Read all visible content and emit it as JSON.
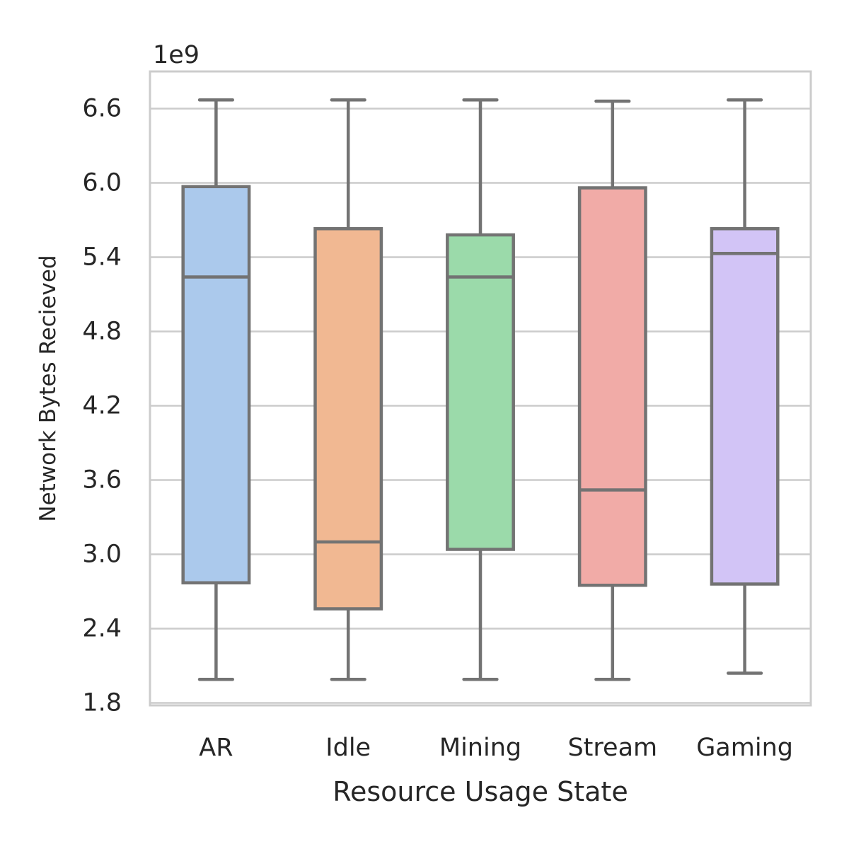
{
  "chart_data": {
    "type": "box",
    "xlabel": "Resource Usage State",
    "ylabel": "Network Bytes Recieved",
    "offset_label": "1e9",
    "ylim": [
      1.78,
      6.9
    ],
    "yticks": [
      1.8,
      2.4,
      3.0,
      3.6,
      4.2,
      4.8,
      5.4,
      6.0,
      6.6
    ],
    "ytick_labels": [
      "1.8",
      "2.4",
      "3.0",
      "3.6",
      "4.2",
      "4.8",
      "5.4",
      "6.0",
      "6.6"
    ],
    "grid": true,
    "categories": [
      "AR",
      "Idle",
      "Mining",
      "Stream",
      "Gaming"
    ],
    "boxes": [
      {
        "category": "AR",
        "whisker_low": 1.99,
        "q1": 2.77,
        "median": 5.24,
        "q3": 5.97,
        "whisker_high": 6.67,
        "color": "#abc9ec"
      },
      {
        "category": "Idle",
        "whisker_low": 1.99,
        "q1": 2.56,
        "median": 3.1,
        "q3": 5.63,
        "whisker_high": 6.67,
        "color": "#f1b892"
      },
      {
        "category": "Mining",
        "whisker_low": 1.99,
        "q1": 3.04,
        "median": 5.24,
        "q3": 5.58,
        "whisker_high": 6.67,
        "color": "#9bdaaa"
      },
      {
        "category": "Stream",
        "whisker_low": 1.99,
        "q1": 2.75,
        "median": 3.52,
        "q3": 5.96,
        "whisker_high": 6.66,
        "color": "#f1aba7"
      },
      {
        "category": "Gaming",
        "whisker_low": 2.04,
        "q1": 2.76,
        "median": 5.43,
        "q3": 5.63,
        "whisker_high": 6.67,
        "color": "#d2c4f6"
      }
    ],
    "box_edge_color": "#737373",
    "grid_color": "#cccccc"
  }
}
